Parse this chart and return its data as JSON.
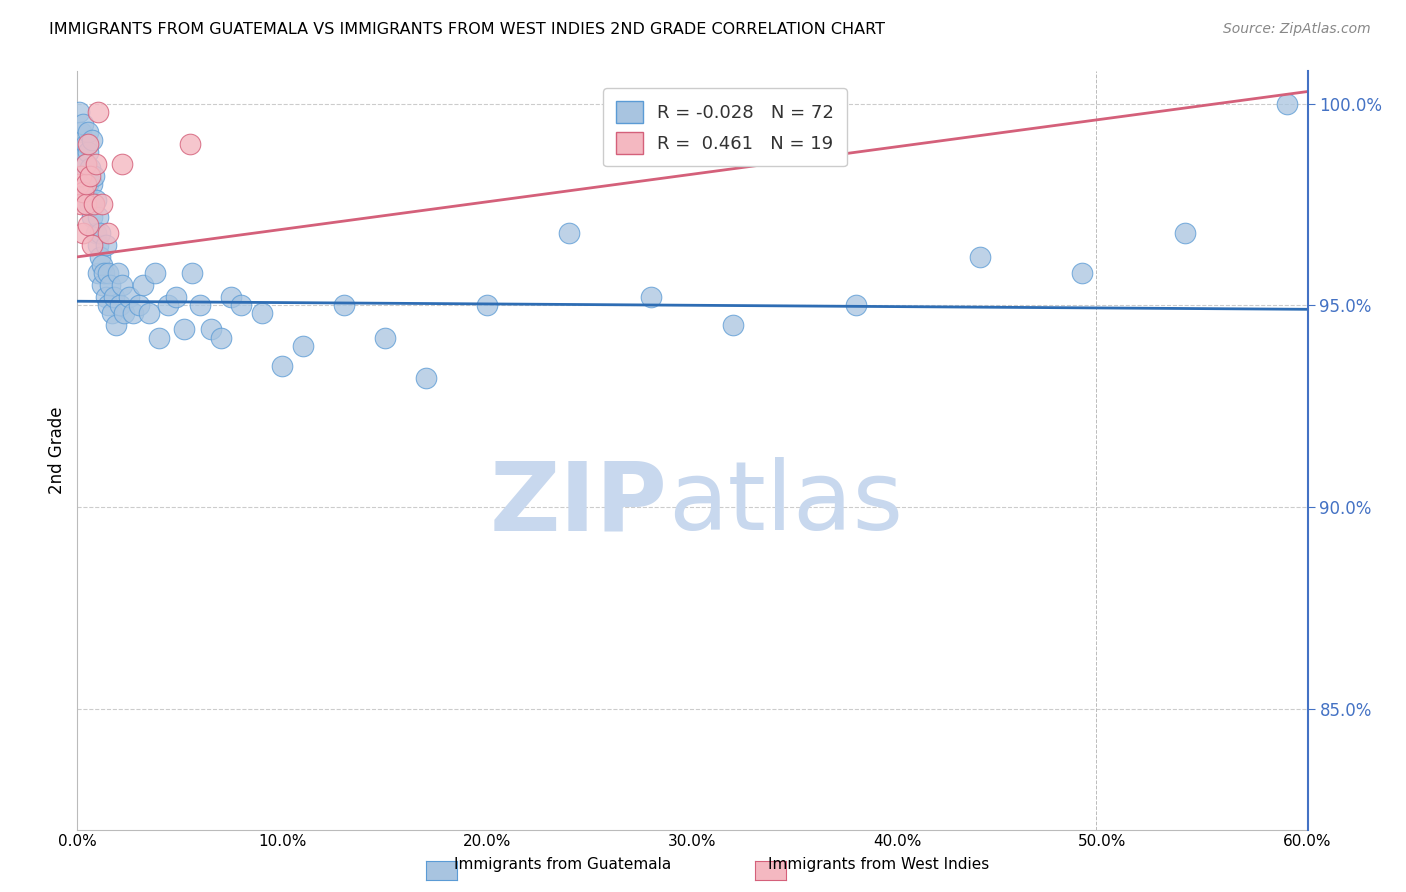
{
  "title": "IMMIGRANTS FROM GUATEMALA VS IMMIGRANTS FROM WEST INDIES 2ND GRADE CORRELATION CHART",
  "source": "Source: ZipAtlas.com",
  "ylabel": "2nd Grade",
  "x_min": 0.0,
  "x_max": 0.6,
  "y_min": 0.82,
  "y_max": 1.008,
  "ytick_labels": [
    "85.0%",
    "90.0%",
    "95.0%",
    "100.0%"
  ],
  "ytick_values": [
    0.85,
    0.9,
    0.95,
    1.0
  ],
  "xtick_positions": [
    0.0,
    0.1,
    0.2,
    0.3,
    0.4,
    0.5,
    0.6
  ],
  "xtick_labels": [
    "0.0%",
    "10.0%",
    "20.0%",
    "30.0%",
    "40.0%",
    "50.0%",
    "60.0%"
  ],
  "legend_r_blue": "-0.028",
  "legend_n_blue": "72",
  "legend_r_pink": "0.461",
  "legend_n_pink": "19",
  "blue_color": "#a8c4e0",
  "blue_edge_color": "#5b9bd5",
  "pink_color": "#f4b8c1",
  "pink_edge_color": "#d4607a",
  "blue_line_color": "#2e6db4",
  "pink_line_color": "#d4607a",
  "watermark_zip_color": "#c8d8ee",
  "watermark_atlas_color": "#c8d8ee",
  "background_color": "#ffffff",
  "grid_color": "#cccccc",
  "right_axis_color": "#4472c4",
  "blue_line_y0": 0.951,
  "blue_line_y1": 0.949,
  "pink_line_y0": 0.962,
  "pink_line_y1": 1.003,
  "guatemala_data_x": [
    0.001,
    0.002,
    0.002,
    0.003,
    0.003,
    0.003,
    0.004,
    0.004,
    0.004,
    0.005,
    0.005,
    0.005,
    0.006,
    0.006,
    0.007,
    0.007,
    0.007,
    0.008,
    0.008,
    0.009,
    0.009,
    0.01,
    0.01,
    0.01,
    0.011,
    0.011,
    0.012,
    0.012,
    0.013,
    0.014,
    0.014,
    0.015,
    0.015,
    0.016,
    0.017,
    0.018,
    0.019,
    0.02,
    0.021,
    0.022,
    0.023,
    0.025,
    0.027,
    0.03,
    0.032,
    0.035,
    0.038,
    0.04,
    0.044,
    0.048,
    0.052,
    0.056,
    0.06,
    0.065,
    0.07,
    0.075,
    0.08,
    0.09,
    0.1,
    0.11,
    0.13,
    0.15,
    0.17,
    0.2,
    0.24,
    0.28,
    0.32,
    0.38,
    0.44,
    0.49,
    0.54,
    0.59
  ],
  "guatemala_data_y": [
    0.998,
    0.993,
    0.987,
    0.995,
    0.982,
    0.976,
    0.99,
    0.985,
    0.978,
    0.993,
    0.988,
    0.98,
    0.984,
    0.975,
    0.991,
    0.98,
    0.972,
    0.982,
    0.975,
    0.976,
    0.968,
    0.972,
    0.965,
    0.958,
    0.968,
    0.962,
    0.96,
    0.955,
    0.958,
    0.965,
    0.952,
    0.958,
    0.95,
    0.955,
    0.948,
    0.952,
    0.945,
    0.958,
    0.95,
    0.955,
    0.948,
    0.952,
    0.948,
    0.95,
    0.955,
    0.948,
    0.958,
    0.942,
    0.95,
    0.952,
    0.944,
    0.958,
    0.95,
    0.944,
    0.942,
    0.952,
    0.95,
    0.948,
    0.935,
    0.94,
    0.95,
    0.942,
    0.932,
    0.95,
    0.968,
    0.952,
    0.945,
    0.95,
    0.962,
    0.958,
    0.968,
    1.0
  ],
  "westindies_data_x": [
    0.001,
    0.002,
    0.002,
    0.003,
    0.003,
    0.004,
    0.004,
    0.004,
    0.005,
    0.005,
    0.006,
    0.007,
    0.008,
    0.009,
    0.01,
    0.012,
    0.015,
    0.022,
    0.055
  ],
  "westindies_data_y": [
    0.98,
    0.982,
    0.975,
    0.978,
    0.968,
    0.975,
    0.98,
    0.985,
    0.99,
    0.97,
    0.982,
    0.965,
    0.975,
    0.985,
    0.998,
    0.975,
    0.968,
    0.985,
    0.99
  ]
}
